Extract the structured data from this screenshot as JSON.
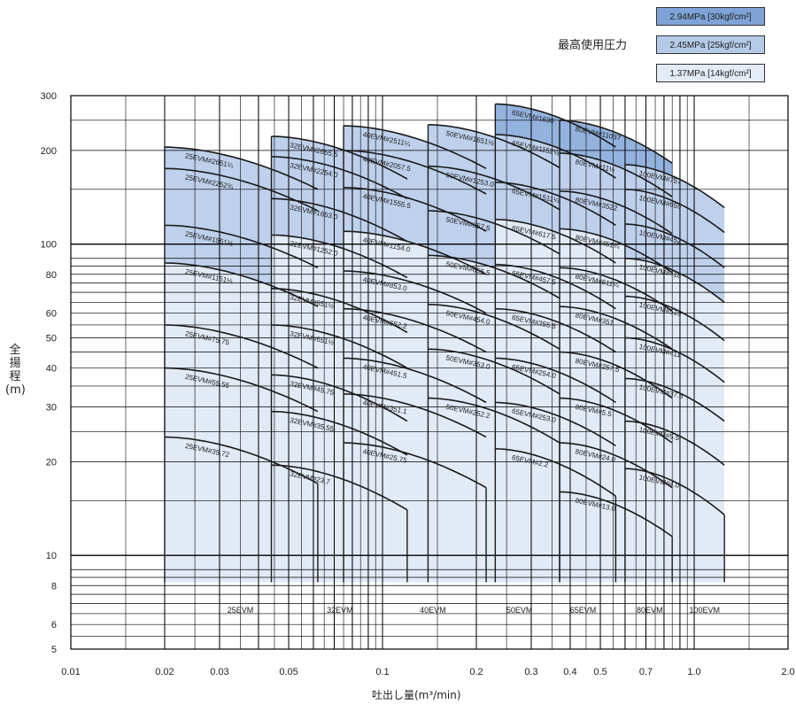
{
  "chart_data": {
    "type": "area",
    "xscale": "log",
    "yscale": "log",
    "xlim": [
      0.01,
      2.0
    ],
    "ylim": [
      5,
      300
    ],
    "xlabel": "吐出し量(m³/min)",
    "ylabel": [
      "全",
      "揚",
      "程",
      "(m)"
    ],
    "xticks": [
      {
        "v": 0.01,
        "label": "0.01"
      },
      {
        "v": 0.02,
        "label": "0.02"
      },
      {
        "v": 0.03,
        "label": "0.03"
      },
      {
        "v": 0.05,
        "label": "0.05"
      },
      {
        "v": 0.1,
        "label": "0.1"
      },
      {
        "v": 0.2,
        "label": "0.2"
      },
      {
        "v": 0.3,
        "label": "0.3"
      },
      {
        "v": 0.4,
        "label": "0.4"
      },
      {
        "v": 0.5,
        "label": "0.5"
      },
      {
        "v": 0.7,
        "label": "0.7"
      },
      {
        "v": 1.0,
        "label": "1.0"
      },
      {
        "v": 2.0,
        "label": "2.0"
      }
    ],
    "yticks": [
      {
        "v": 5,
        "label": "5"
      },
      {
        "v": 6,
        "label": "6"
      },
      {
        "v": 8,
        "label": "8"
      },
      {
        "v": 10,
        "label": "10"
      },
      {
        "v": 20,
        "label": "20"
      },
      {
        "v": 30,
        "label": "30"
      },
      {
        "v": 40,
        "label": "40"
      },
      {
        "v": 50,
        "label": "50"
      },
      {
        "v": 60,
        "label": "60"
      },
      {
        "v": 80,
        "label": "80"
      },
      {
        "v": 100,
        "label": "100"
      },
      {
        "v": 200,
        "label": "200"
      },
      {
        "v": 300,
        "label": "300"
      }
    ],
    "legend": {
      "title": "最高使用圧力",
      "entries": [
        {
          "label": "2.94MPa [30kgf/cm²]",
          "color": "#7fa3d6"
        },
        {
          "label": "2.45MPa [25kgf/cm²]",
          "color": "#b4cae8"
        },
        {
          "label": "1.37MPa [14kgf/cm²]",
          "color": "#e3ebf7"
        }
      ]
    },
    "colors": {
      "high": "#8eaedd",
      "mid": "#b7cbe9",
      "low": "#e2eaf6",
      "curve": "#1a1a1a",
      "grid": "#000000"
    },
    "families": [
      {
        "name": "25EVM",
        "x0": 0.02,
        "x1": 0.062,
        "label_x": 0.035,
        "bottom": 8.2,
        "curves": [
          {
            "label": "25EVM#2651¼",
            "h0": 205,
            "h1": 150
          },
          {
            "label": "25EVM#2252¾",
            "h0": 175,
            "h1": 128
          },
          {
            "label": "25EVM#1551½",
            "h0": 115,
            "h1": 84
          },
          {
            "label": "25EVM#1151½",
            "h0": 87,
            "h1": 63
          },
          {
            "label": "25EVM#75.75",
            "h0": 55,
            "h1": 40
          },
          {
            "label": "25EVM#55.55",
            "h0": 40,
            "h1": 29
          },
          {
            "label": "25EVM#35.72",
            "h0": 24,
            "h1": 17
          }
        ]
      },
      {
        "name": "32EVM",
        "x0": 0.044,
        "x1": 0.12,
        "label_x": 0.073,
        "bottom": 8.2,
        "break_x": 0.063,
        "curves": [
          {
            "label": "32EVM#2655.5",
            "h0": 222,
            "h1": 162
          },
          {
            "label": "32EVM#2254.0",
            "h0": 191,
            "h1": 140
          },
          {
            "label": "32EVM#1653.0",
            "h0": 140,
            "h1": 102
          },
          {
            "label": "32EVM#1252.0",
            "h0": 107,
            "h1": 78
          },
          {
            "label": "32EVM#851½",
            "h0": 72,
            "h1": 52
          },
          {
            "label": "32EVM#651½",
            "h0": 55,
            "h1": 40
          },
          {
            "label": "32EVM#45.75",
            "h0": 38,
            "h1": 27
          },
          {
            "label": "32EVM#35.55",
            "h0": 29,
            "h1": 21
          },
          {
            "label": "32EVM#23.7",
            "h0": 19.5,
            "h1": 14
          }
        ]
      },
      {
        "name": "40EVM",
        "x0": 0.075,
        "x1": 0.215,
        "label_x": 0.145,
        "bottom": 8.2,
        "break_x": 0.122,
        "curves": [
          {
            "label": "40EVM#2511¼",
            "h0": 240,
            "h1": 175
          },
          {
            "label": "40EVM#2057.5",
            "h0": 200,
            "h1": 145
          },
          {
            "label": "40EVM#1555.5",
            "h0": 152,
            "h1": 110
          },
          {
            "label": "40EVM#1154.0",
            "h0": 110,
            "h1": 80
          },
          {
            "label": "40EVM#853.0",
            "h0": 82,
            "h1": 60
          },
          {
            "label": "40EVM#652.2",
            "h0": 62,
            "h1": 45
          },
          {
            "label": "40EVM#451.5",
            "h0": 43,
            "h1": 31
          },
          {
            "label": "40EVM#351.1",
            "h0": 33,
            "h1": 24
          },
          {
            "label": "40EVM#25.75",
            "h0": 23,
            "h1": 16.5
          }
        ]
      },
      {
        "name": "50EVM",
        "x0": 0.14,
        "x1": 0.37,
        "label_x": 0.275,
        "bottom": 8.2,
        "break_x": 0.218,
        "curves": [
          {
            "label": "50EVM#1651½",
            "h0": 242,
            "h1": 176
          },
          {
            "label": "50EVM#1253.0",
            "h0": 178,
            "h1": 129
          },
          {
            "label": "50EVM#857.5",
            "h0": 128,
            "h1": 93
          },
          {
            "label": "50EVM#655.5",
            "h0": 92,
            "h1": 67
          },
          {
            "label": "50EVM#454.0",
            "h0": 64,
            "h1": 46
          },
          {
            "label": "50EVM#353.0",
            "h0": 46,
            "h1": 33
          },
          {
            "label": "50EVM#252.2",
            "h0": 32,
            "h1": 23
          }
        ]
      },
      {
        "name": "65EVM",
        "x0": 0.23,
        "x1": 0.56,
        "label_x": 0.44,
        "bottom": 8.2,
        "break_x": 0.38,
        "high": true,
        "curves": [
          {
            "label": "65EVM#1630",
            "h0": 282,
            "h1": 205
          },
          {
            "label": "65EVM#1152½",
            "h0": 225,
            "h1": 163
          },
          {
            "label": "65EVM#1511¼",
            "h0": 158,
            "h1": 115
          },
          {
            "label": "65EVM#617.5",
            "h0": 120,
            "h1": 87
          },
          {
            "label": "65EVM#457.5",
            "h0": 86,
            "h1": 62
          },
          {
            "label": "65EVM#355.5",
            "h0": 62,
            "h1": 45
          },
          {
            "label": "65EVM#254.0",
            "h0": 43,
            "h1": 31
          },
          {
            "label": "65EVM#253.0",
            "h0": 31,
            "h1": 22.5
          },
          {
            "label": "65EVM#2.2",
            "h0": 22,
            "h1": 15.5
          }
        ]
      },
      {
        "name": "80EVM",
        "x0": 0.37,
        "x1": 0.85,
        "label_x": 0.72,
        "bottom": 8.2,
        "break_x": 0.58,
        "high": true,
        "curves": [
          {
            "label": "80EVM#11037",
            "h0": 250,
            "h1": 182
          },
          {
            "label": "80EVM#11½",
            "h0": 196,
            "h1": 142
          },
          {
            "label": "80EVM#3522",
            "h0": 148,
            "h1": 108
          },
          {
            "label": "80EVM#451¼",
            "h0": 112,
            "h1": 81
          },
          {
            "label": "80EVM#611¼",
            "h0": 84,
            "h1": 61
          },
          {
            "label": "80EVM#351",
            "h0": 63,
            "h1": 46
          },
          {
            "label": "80EVM#257.5",
            "h0": 45,
            "h1": 32
          },
          {
            "label": "80EVM#5.5",
            "h0": 32,
            "h1": 23
          },
          {
            "label": "80EVM#24.0",
            "h0": 23,
            "h1": 16.5
          },
          {
            "label": "80EVM#13.0",
            "h0": 16,
            "h1": 11.5
          }
        ]
      },
      {
        "name": "100EVM",
        "x0": 0.6,
        "x1": 1.25,
        "label_x": 1.08,
        "bottom": 8.2,
        "break_x": 0.88,
        "curves": [
          {
            "label": "100EVM#757",
            "h0": 180,
            "h1": 131
          },
          {
            "label": "100EVM#655",
            "h0": 150,
            "h1": 109
          },
          {
            "label": "100EVM#452",
            "h0": 116,
            "h1": 84
          },
          {
            "label": "100EVM#418",
            "h0": 90,
            "h1": 65
          },
          {
            "label": "100EVM#515",
            "h0": 68,
            "h1": 49
          },
          {
            "label": "100EVM#411",
            "h0": 50,
            "h1": 36
          },
          {
            "label": "100EVM#37.5",
            "h0": 37,
            "h1": 27
          },
          {
            "label": "100EVM#5.5",
            "h0": 27,
            "h1": 19.5
          },
          {
            "label": "100EVM#4.0",
            "h0": 19,
            "h1": 13.5
          }
        ]
      }
    ]
  }
}
